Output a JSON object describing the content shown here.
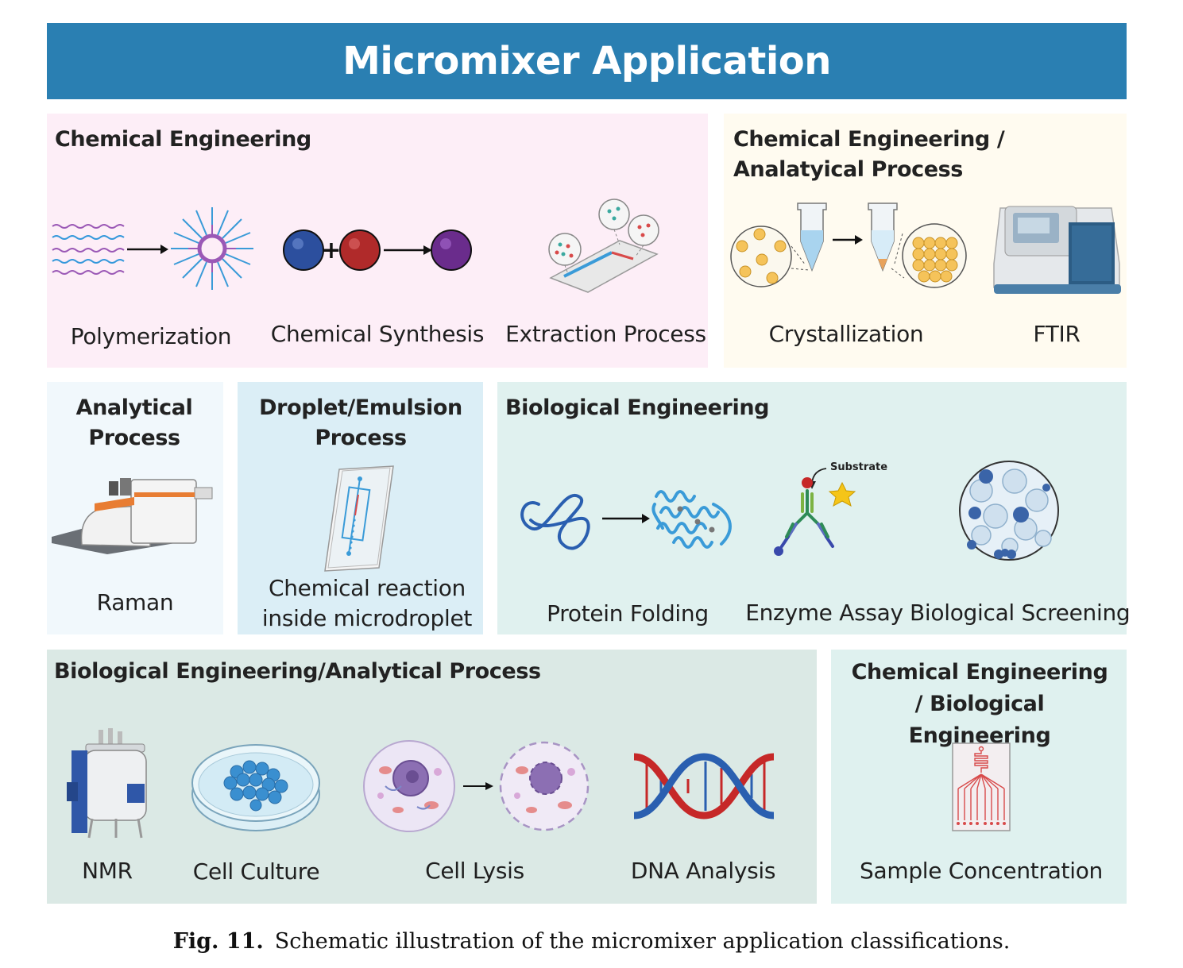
{
  "banner_title": "Micromixer Application",
  "panels": {
    "chem_eng": {
      "title": "Chemical Engineering",
      "items": [
        "Polymerization",
        "Chemical Synthesis",
        "Extraction Process"
      ]
    },
    "chem_anal": {
      "title": "Chemical Engineering / Analatyical Process",
      "items": [
        "Crystallization",
        "FTIR"
      ]
    },
    "anal": {
      "title": "Analytical Process",
      "items": [
        "Raman"
      ]
    },
    "droplet": {
      "title": "Droplet/Emulsion Process",
      "items": [
        "Chemical reaction inside microdroplet"
      ]
    },
    "bio_eng": {
      "title": "Biological Engineering",
      "items": [
        "Protein Folding",
        "Enzyme Assay",
        "Biological Screening"
      ],
      "substrate_label": "Substrate"
    },
    "bio_anal": {
      "title": "Biological Engineering/Analytical Process",
      "items": [
        "NMR",
        "Cell Culture",
        "Cell Lysis",
        "DNA Analysis"
      ]
    },
    "chem_bio": {
      "title": "Chemical Engineering / Biological Engineering",
      "items": [
        "Sample Concentration"
      ]
    }
  },
  "caption": {
    "label": "Fig. 11.",
    "text": "Schematic illustration of the micromixer application classifications."
  },
  "colors": {
    "banner": "#2a7fb2",
    "chem_eng_bg": "#fdeef7",
    "chem_anal_bg": "#fffbf0",
    "anal_bg": "#f1f8fc",
    "droplet_bg": "#dbeef6",
    "bio_eng_bg": "#e0f1ef",
    "bio_anal_bg": "#dbe9e5",
    "chem_bio_bg": "#dff1ef"
  }
}
